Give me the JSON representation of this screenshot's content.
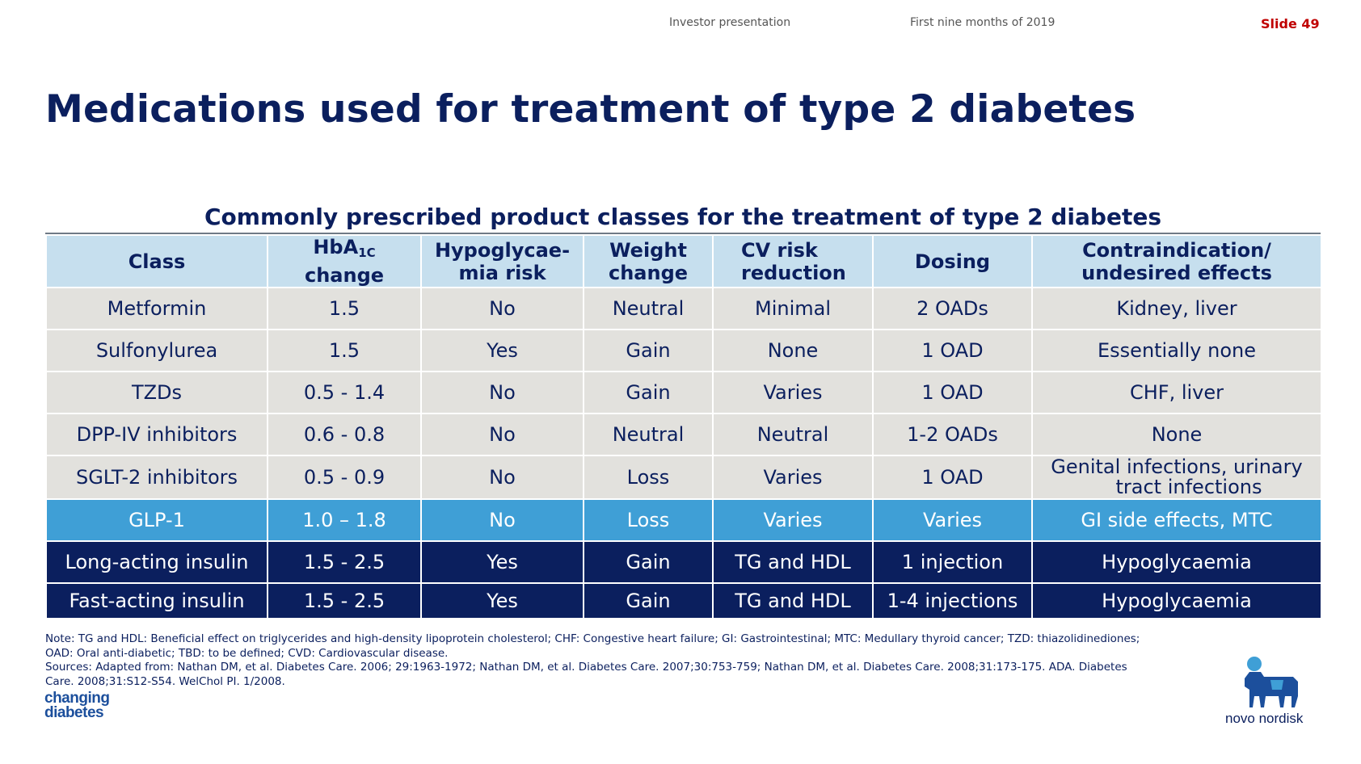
{
  "header": {
    "presentation": "Investor presentation",
    "period": "First nine months of 2019",
    "slide": "Slide 49"
  },
  "title": "Medications used for treatment of type 2 diabetes",
  "table": {
    "title": "Commonly prescribed product classes for the treatment of type 2 diabetes",
    "headers": {
      "class": "Class",
      "hba1c_main": "HbA",
      "hba1c_sub": "1C",
      "hba1c_tail": "change",
      "hypo_line1": "Hypoglycae-",
      "hypo_line2": "mia risk",
      "weight_line1": "Weight",
      "weight_line2": "change",
      "cv_line1": "CV risk",
      "cv_line2": "reduction",
      "dosing": "Dosing",
      "contra_line1": "Contraindication/",
      "contra_line2": "undesired effects"
    },
    "rows": [
      {
        "class": "Metformin",
        "hba1c": "1.5",
        "hypo": "No",
        "weight": "Neutral",
        "cv": "Minimal",
        "dosing": "2 OADs",
        "contra": "Kidney, liver",
        "contra2": ""
      },
      {
        "class": "Sulfonylurea",
        "hba1c": "1.5",
        "hypo": "Yes",
        "weight": "Gain",
        "cv": "None",
        "dosing": "1 OAD",
        "contra": "Essentially none",
        "contra2": ""
      },
      {
        "class": "TZDs",
        "hba1c": "0.5 - 1.4",
        "hypo": "No",
        "weight": "Gain",
        "cv": "Varies",
        "dosing": "1 OAD",
        "contra": "CHF, liver",
        "contra2": ""
      },
      {
        "class": "DPP-IV inhibitors",
        "hba1c": "0.6 - 0.8",
        "hypo": "No",
        "weight": "Neutral",
        "cv": "Neutral",
        "dosing": "1-2 OADs",
        "contra": "None",
        "contra2": ""
      },
      {
        "class": "SGLT-2 inhibitors",
        "hba1c": "0.5 - 0.9",
        "hypo": "No",
        "weight": "Loss",
        "cv": "Varies",
        "dosing": "1 OAD",
        "contra": "Genital infections, urinary",
        "contra2": "tract infections"
      },
      {
        "class": "GLP-1",
        "hba1c": "1.0 – 1.8",
        "hypo": "No",
        "weight": "Loss",
        "cv": "Varies",
        "dosing": "Varies",
        "contra": "GI side effects, MTC",
        "contra2": ""
      },
      {
        "class": "Long-acting insulin",
        "hba1c": "1.5 - 2.5",
        "hypo": "Yes",
        "weight": "Gain",
        "cv": "TG and HDL",
        "dosing": "1 injection",
        "contra": "Hypoglycaemia",
        "contra2": ""
      },
      {
        "class": "Fast-acting insulin",
        "hba1c": "1.5 - 2.5",
        "hypo": "Yes",
        "weight": "Gain",
        "cv": "TG and HDL",
        "dosing": "1-4 injections",
        "contra": "Hypoglycaemia",
        "contra2": ""
      }
    ]
  },
  "notes": {
    "line1": "Note: TG and HDL: Beneficial effect on triglycerides and high-density lipoprotein cholesterol; CHF: Congestive heart failure; GI: Gastrointestinal; MTC: Medullary thyroid cancer; TZD: thiazolidinediones;",
    "line2": "OAD: Oral anti-diabetic; TBD: to be defined; CVD: Cardiovascular disease.",
    "line3": "Sources: Adapted from: Nathan DM, et al. Diabetes Care. 2006; 29:1963-1972; Nathan DM, et al. Diabetes Care. 2007;30:753-759; Nathan DM, et al. Diabetes Care. 2008;31:173-175. ADA. Diabetes",
    "line4": "Care. 2008;31:S12-S54. WelChol PI. 1/2008."
  },
  "logos": {
    "changing_line1": "changing",
    "changing_line2": "diabetes",
    "novo": "novo nordisk"
  },
  "colors": {
    "navy": "#0b1f5e",
    "header_blue": "#c6dfee",
    "row_grey": "#e2e1dd",
    "glp1_blue": "#3f9fd6",
    "slide_red": "#c00000"
  }
}
